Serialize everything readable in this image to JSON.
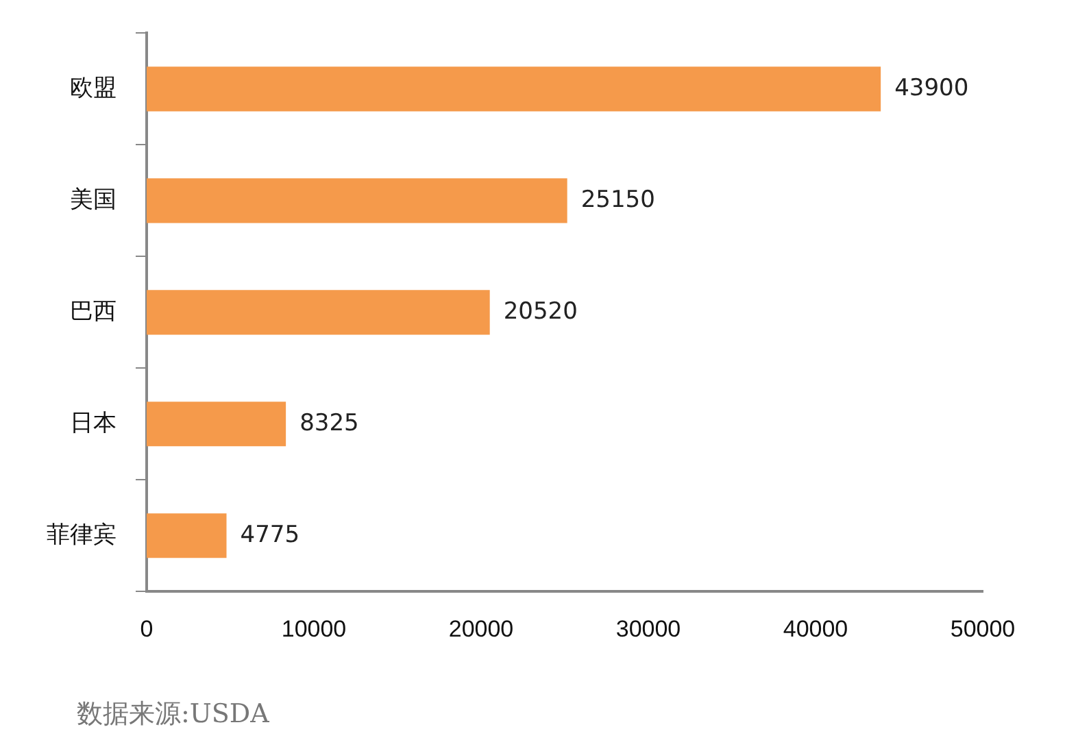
{
  "chart_data": {
    "type": "bar",
    "orientation": "horizontal",
    "categories": [
      "欧盟",
      "美国",
      "巴西",
      "日本",
      "菲律宾"
    ],
    "values": [
      43900,
      25150,
      20520,
      8325,
      4775
    ],
    "color": "#f59a4b",
    "xlim": [
      0,
      50000
    ],
    "xticks": [
      0,
      10000,
      20000,
      30000,
      40000,
      50000
    ],
    "grid": false,
    "legend": false,
    "data_labels": true,
    "annotations": [
      "数据来源:USDA"
    ]
  }
}
